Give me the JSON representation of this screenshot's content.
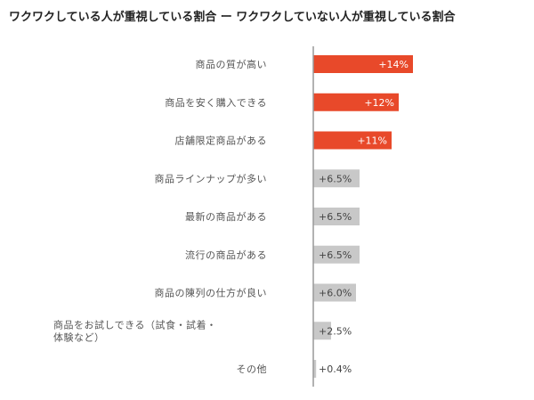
{
  "chart_data": {
    "type": "bar",
    "orientation": "horizontal",
    "title": "ワクワクしている人が重視している割合 ー ワクワクしていない人が重視している割合",
    "categories": [
      "商品の質が高い",
      "商品を安く購入できる",
      "店舗限定商品がある",
      "商品ラインナップが多い",
      "最新の商品がある",
      "流行の商品がある",
      "商品の陳列の仕方が良い",
      "商品をお試しできる（試食・試着・体験など）",
      "その他"
    ],
    "values": [
      14,
      12,
      11,
      6.5,
      6.5,
      6.5,
      6.0,
      2.5,
      0.4
    ],
    "value_labels": [
      "+14%",
      "+12%",
      "+11%",
      "+6.5%",
      "+6.5%",
      "+6.5%",
      "+6.0%",
      "+2.5%",
      "+0.4%"
    ],
    "highlight_count": 3,
    "xlim": [
      0,
      30
    ],
    "grid": false,
    "colors": {
      "highlight": "#e8492a",
      "normal": "#c8c8c8",
      "axis": "#999999",
      "highlight_text": "#ffffff",
      "normal_text": "#444444"
    }
  }
}
